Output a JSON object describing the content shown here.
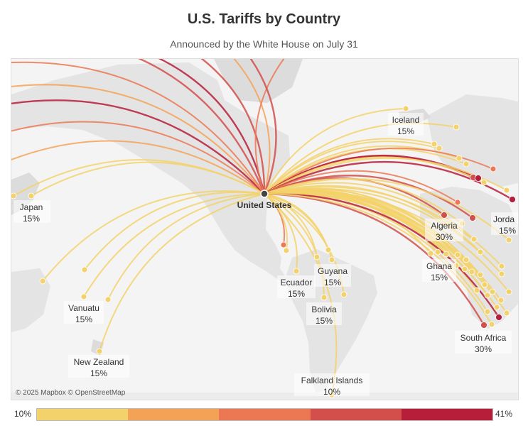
{
  "title": "U.S. Tariffs by Country",
  "subtitle": "Announced by the White House on July 31",
  "attribution": "© 2025 Mapbox © OpenStreetMap",
  "legend": {
    "min_label": "10%",
    "max_label": "41%",
    "colors": [
      "#f3d26b",
      "#f4a256",
      "#ec7853",
      "#d24f4b",
      "#b71e3a"
    ]
  },
  "chart_data": {
    "type": "flow-map",
    "title": "U.S. Tariffs by Country",
    "subtitle": "Announced by the White House on July 31",
    "origin": "United States",
    "color_scale": {
      "min": 10,
      "max": 41
    },
    "labeled_countries": [
      {
        "name": "Iceland",
        "tariff": "15%"
      },
      {
        "name": "Japan",
        "tariff": "15%"
      },
      {
        "name": "Algeria",
        "tariff": "30%"
      },
      {
        "name": "Jorda",
        "tariff": "15%"
      },
      {
        "name": "Ghana",
        "tariff": "15%"
      },
      {
        "name": "Guyana",
        "tariff": "15%"
      },
      {
        "name": "Ecuador",
        "tariff": "15%"
      },
      {
        "name": "Bolivia",
        "tariff": "15%"
      },
      {
        "name": "Vanuatu",
        "tariff": "15%"
      },
      {
        "name": "New Zealand",
        "tariff": "15%"
      },
      {
        "name": "South Africa",
        "tariff": "30%"
      },
      {
        "name": "Falkland Islands",
        "tariff": "10%"
      }
    ]
  }
}
